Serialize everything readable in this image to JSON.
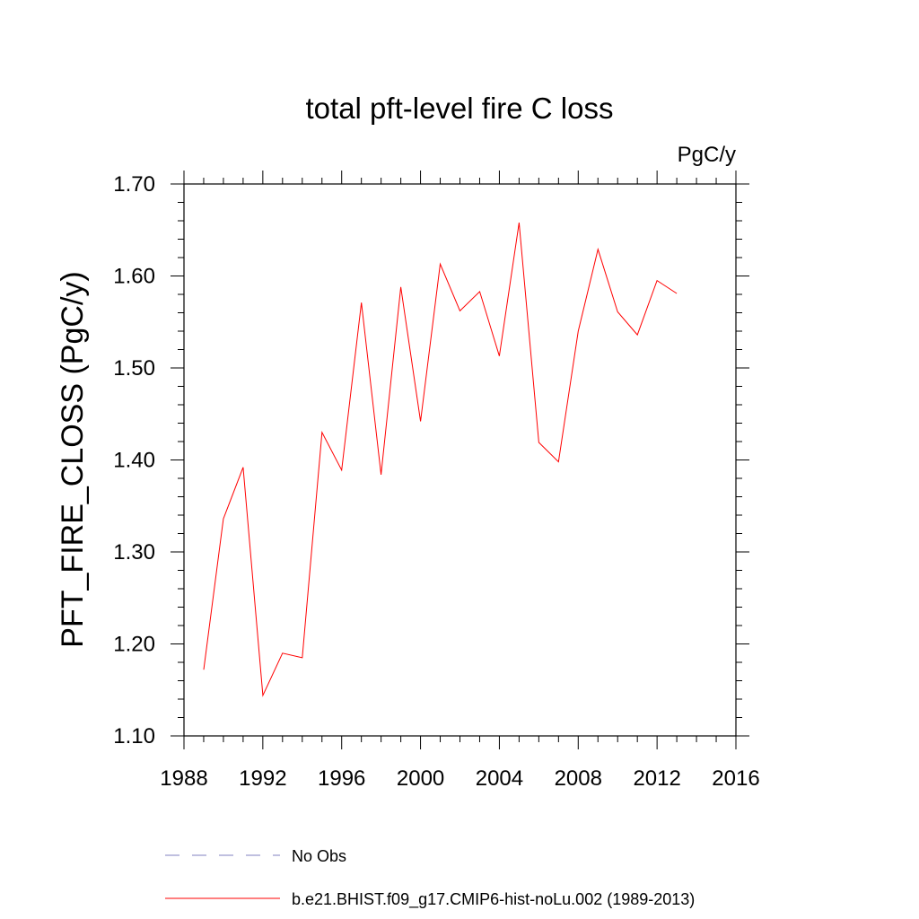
{
  "chart_data": {
    "type": "line",
    "title": "total pft-level fire C loss",
    "units_label": "PgC/y",
    "xlabel": "",
    "ylabel": "PFT_FIRE_CLOSS  (PgC/y)",
    "xlim": [
      1988,
      2016
    ],
    "ylim": [
      1.1,
      1.7
    ],
    "x_ticks": [
      1988,
      1992,
      1996,
      2000,
      2004,
      2008,
      2012,
      2016
    ],
    "x_tick_labels": [
      "1988",
      "1992",
      "1996",
      "2000",
      "2004",
      "2008",
      "2012",
      "2016"
    ],
    "x_minor_step": 1,
    "y_ticks": [
      1.1,
      1.2,
      1.3,
      1.4,
      1.5,
      1.6,
      1.7
    ],
    "y_tick_labels": [
      "1.10",
      "1.20",
      "1.30",
      "1.40",
      "1.50",
      "1.60",
      "1.70"
    ],
    "y_minor_step": 0.02,
    "grid": false,
    "series": [
      {
        "name": "b.e21.BHIST.f09_g17.CMIP6-hist-noLu.002 (1989-2013)",
        "color": "#ff0000",
        "style": "solid",
        "x": [
          1989,
          1990,
          1991,
          1992,
          1993,
          1994,
          1995,
          1996,
          1997,
          1998,
          1999,
          2000,
          2001,
          2002,
          2003,
          2004,
          2005,
          2006,
          2007,
          2008,
          2009,
          2010,
          2011,
          2012,
          2013
        ],
        "values": [
          1.172,
          1.336,
          1.392,
          1.144,
          1.19,
          1.185,
          1.43,
          1.389,
          1.571,
          1.384,
          1.588,
          1.442,
          1.613,
          1.562,
          1.583,
          1.513,
          1.658,
          1.419,
          1.398,
          1.54,
          1.629,
          1.561,
          1.536,
          1.595,
          1.581
        ]
      }
    ],
    "legend": [
      {
        "label": "No Obs",
        "color": "#8080c0",
        "style": "dashed"
      },
      {
        "label": "b.e21.BHIST.f09_g17.CMIP6-hist-noLu.002 (1989-2013)",
        "color": "#ff0000",
        "style": "solid"
      }
    ],
    "legend_position": "bottom"
  }
}
